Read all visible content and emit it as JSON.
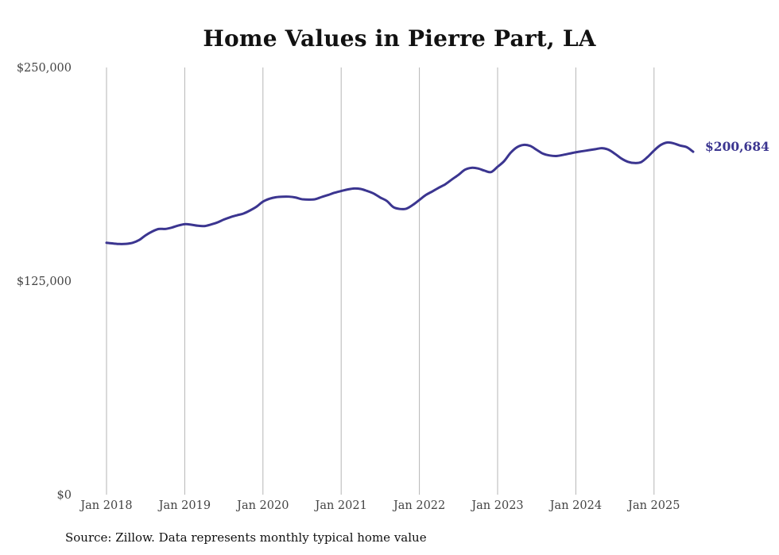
{
  "chart_data": {
    "type": "line",
    "title": "Home Values in Pierre Part, LA",
    "source": "Source: Zillow. Data represents monthly typical home value",
    "ylim": [
      0,
      250000
    ],
    "xlim": [
      "2018-01",
      "2025-07"
    ],
    "y_ticks": [
      {
        "value": 0,
        "label": "$0"
      },
      {
        "value": 125000,
        "label": "$125,000"
      },
      {
        "value": 250000,
        "label": "$250,000"
      }
    ],
    "x_ticks": [
      {
        "value": "2018-01",
        "label": "Jan 2018"
      },
      {
        "value": "2019-01",
        "label": "Jan 2019"
      },
      {
        "value": "2020-01",
        "label": "Jan 2020"
      },
      {
        "value": "2021-01",
        "label": "Jan 2021"
      },
      {
        "value": "2022-01",
        "label": "Jan 2022"
      },
      {
        "value": "2023-01",
        "label": "Jan 2023"
      },
      {
        "value": "2024-01",
        "label": "Jan 2024"
      },
      {
        "value": "2025-01",
        "label": "Jan 2025"
      }
    ],
    "grid": {
      "vertical": true,
      "horizontal": false
    },
    "line_color": "#3b3590",
    "end_label": "$200,684",
    "series": [
      {
        "x": [
          "2018-01",
          "2018-02",
          "2018-03",
          "2018-04",
          "2018-05",
          "2018-06",
          "2018-07",
          "2018-08",
          "2018-09",
          "2018-10",
          "2018-11",
          "2018-12",
          "2019-01",
          "2019-02",
          "2019-03",
          "2019-04",
          "2019-05",
          "2019-06",
          "2019-07",
          "2019-08",
          "2019-09",
          "2019-10",
          "2019-11",
          "2019-12",
          "2020-01",
          "2020-02",
          "2020-03",
          "2020-04",
          "2020-05",
          "2020-06",
          "2020-07",
          "2020-08",
          "2020-09",
          "2020-10",
          "2020-11",
          "2020-12",
          "2021-01",
          "2021-02",
          "2021-03",
          "2021-04",
          "2021-05",
          "2021-06",
          "2021-07",
          "2021-08",
          "2021-09",
          "2021-10",
          "2021-11",
          "2021-12",
          "2022-01",
          "2022-02",
          "2022-03",
          "2022-04",
          "2022-05",
          "2022-06",
          "2022-07",
          "2022-08",
          "2022-09",
          "2022-10",
          "2022-11",
          "2022-12",
          "2023-01",
          "2023-02",
          "2023-03",
          "2023-04",
          "2023-05",
          "2023-06",
          "2023-07",
          "2023-08",
          "2023-09",
          "2023-10",
          "2023-11",
          "2023-12",
          "2024-01",
          "2024-02",
          "2024-03",
          "2024-04",
          "2024-05",
          "2024-06",
          "2024-07",
          "2024-08",
          "2024-09",
          "2024-10",
          "2024-11",
          "2024-12",
          "2025-01",
          "2025-02",
          "2025-03",
          "2025-04",
          "2025-05",
          "2025-06",
          "2025-07"
        ],
        "values": [
          147400,
          147000,
          146700,
          146800,
          147400,
          149000,
          151800,
          154000,
          155500,
          155500,
          156300,
          157500,
          158300,
          158000,
          157400,
          157200,
          158100,
          159300,
          161000,
          162400,
          163500,
          164500,
          166300,
          168500,
          171500,
          173200,
          174100,
          174400,
          174400,
          173900,
          172900,
          172700,
          172900,
          174200,
          175400,
          176700,
          177700,
          178600,
          179200,
          178900,
          177700,
          176200,
          173900,
          171900,
          168300,
          167200,
          167400,
          169600,
          172500,
          175400,
          177500,
          179700,
          181700,
          184500,
          187200,
          190200,
          191300,
          190900,
          189600,
          188800,
          191900,
          195200,
          200100,
          203400,
          204700,
          204100,
          201800,
          199500,
          198500,
          198200,
          198800,
          199600,
          200400,
          201000,
          201600,
          202200,
          202800,
          201900,
          199500,
          196700,
          194800,
          194100,
          194600,
          197600,
          201400,
          204600,
          206100,
          205600,
          204300,
          203400,
          200684
        ]
      }
    ]
  }
}
